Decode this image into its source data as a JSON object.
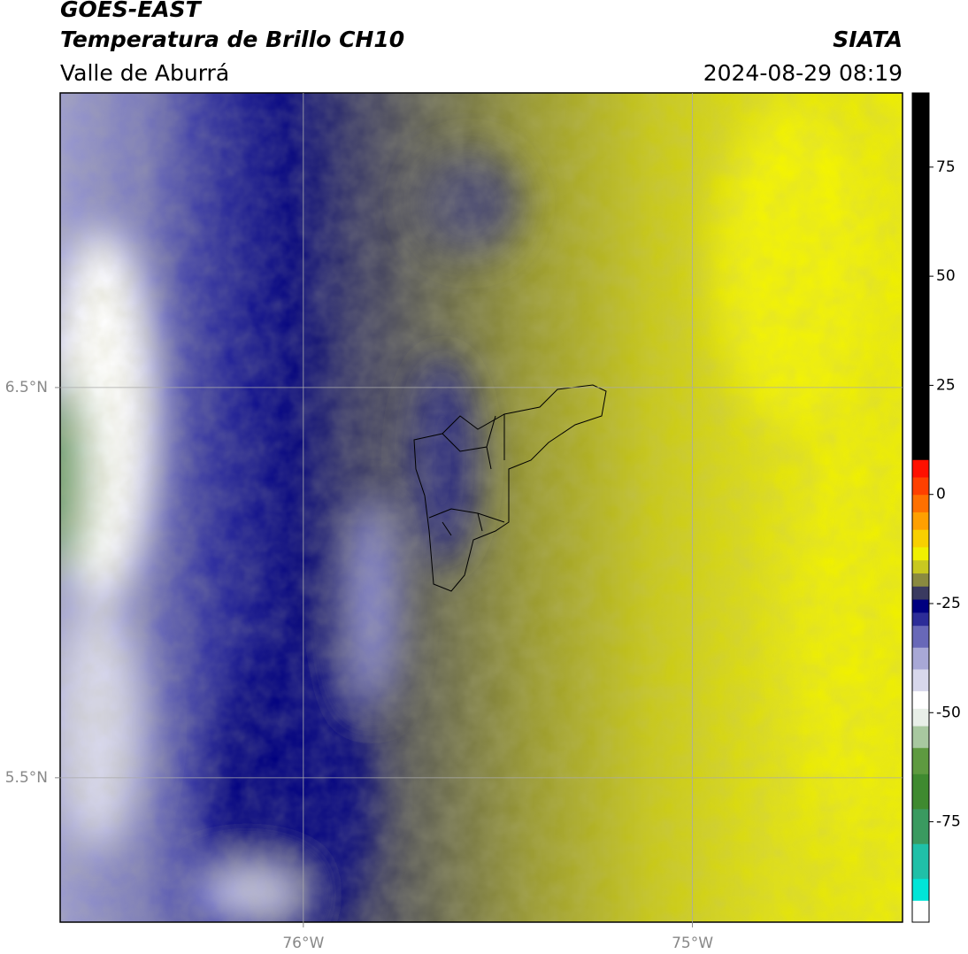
{
  "chart_data": {
    "type": "map",
    "title": "GOES-EAST",
    "subtitle": "Temperatura de Brillo CH10",
    "region": "Valle de Aburrá",
    "source": "SIATA",
    "timestamp": "2024-08-29 08:19",
    "xlim": [
      -76.625,
      -74.46
    ],
    "ylim": [
      5.13,
      7.255
    ],
    "xticks": [
      {
        "value": -76,
        "label": "76°W"
      },
      {
        "value": -75,
        "label": "75°W"
      }
    ],
    "yticks": [
      {
        "value": 5.5,
        "label": "5.5°N"
      },
      {
        "value": 6.5,
        "label": "6.5°N"
      }
    ],
    "grid": true,
    "colorbar": {
      "lim": [
        -98,
        92
      ],
      "ticks": [
        -75,
        -50,
        -25,
        0,
        25,
        50,
        75
      ],
      "levels": [
        -98,
        -93,
        -88,
        -80,
        -72,
        -64,
        -58,
        -53,
        -49,
        -45,
        -40,
        -35,
        -30,
        -27,
        -24,
        -21,
        -18,
        -15,
        -12,
        -8,
        -4,
        0,
        4,
        8,
        92
      ],
      "colors": [
        "#ffffff",
        "#00e5d8",
        "#20c0a8",
        "#3a9a60",
        "#3f8a30",
        "#5e9a40",
        "#a8c8a0",
        "#e8efe8",
        "#ffffff",
        "#d8d8ec",
        "#a8a8d6",
        "#6868b8",
        "#2c2c98",
        "#000080",
        "#3a3a60",
        "#8a8a40",
        "#c8c820",
        "#f0f000",
        "#f8d000",
        "#ffa000",
        "#ff7000",
        "#ff4000",
        "#ff1000",
        "#000000"
      ]
    }
  }
}
